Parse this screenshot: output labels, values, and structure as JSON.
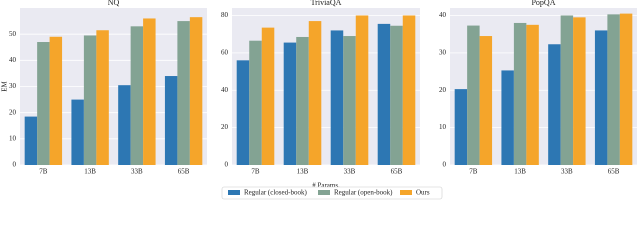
{
  "chart_data": [
    {
      "type": "bar",
      "title": "NQ",
      "ylabel": "EM",
      "categories": [
        "7B",
        "13B",
        "33B",
        "65B"
      ],
      "series": [
        {
          "name": "Regular (closed-book)",
          "color": "#2d77b3",
          "values": [
            18.5,
            25,
            30.5,
            34
          ]
        },
        {
          "name": "Regular (open-book)",
          "color": "#83a393",
          "values": [
            47,
            49.5,
            53,
            55
          ]
        },
        {
          "name": "Ours",
          "color": "#f5a52a",
          "values": [
            49,
            51.5,
            56,
            56.5
          ]
        }
      ],
      "ylim": [
        0,
        60
      ],
      "yticks": [
        0,
        10,
        20,
        30,
        40,
        50
      ],
      "grid": true
    },
    {
      "type": "bar",
      "title": "TriviaQA",
      "xlabel": "# Params.",
      "categories": [
        "7B",
        "13B",
        "33B",
        "65B"
      ],
      "series": [
        {
          "name": "Regular (closed-book)",
          "color": "#2d77b3",
          "values": [
            56,
            65.5,
            72,
            75.5
          ]
        },
        {
          "name": "Regular (open-book)",
          "color": "#83a393",
          "values": [
            66.5,
            68.5,
            69,
            74.5
          ]
        },
        {
          "name": "Ours",
          "color": "#f5a52a",
          "values": [
            73.5,
            77,
            80,
            80
          ]
        }
      ],
      "ylim": [
        0,
        84
      ],
      "yticks": [
        0,
        20,
        40,
        60,
        80
      ],
      "grid": true
    },
    {
      "type": "bar",
      "title": "PopQA",
      "categories": [
        "7B",
        "13B",
        "33B",
        "65B"
      ],
      "series": [
        {
          "name": "Regular (closed-book)",
          "color": "#2d77b3",
          "values": [
            20.3,
            25.3,
            32.3,
            36
          ]
        },
        {
          "name": "Regular (open-book)",
          "color": "#83a393",
          "values": [
            37.3,
            38,
            40,
            40.3
          ]
        },
        {
          "name": "Ours",
          "color": "#f5a52a",
          "values": [
            34.5,
            37.5,
            39.5,
            40.5
          ]
        }
      ],
      "ylim": [
        0,
        42
      ],
      "yticks": [
        0,
        10,
        20,
        30,
        40
      ],
      "grid": true
    }
  ]
}
